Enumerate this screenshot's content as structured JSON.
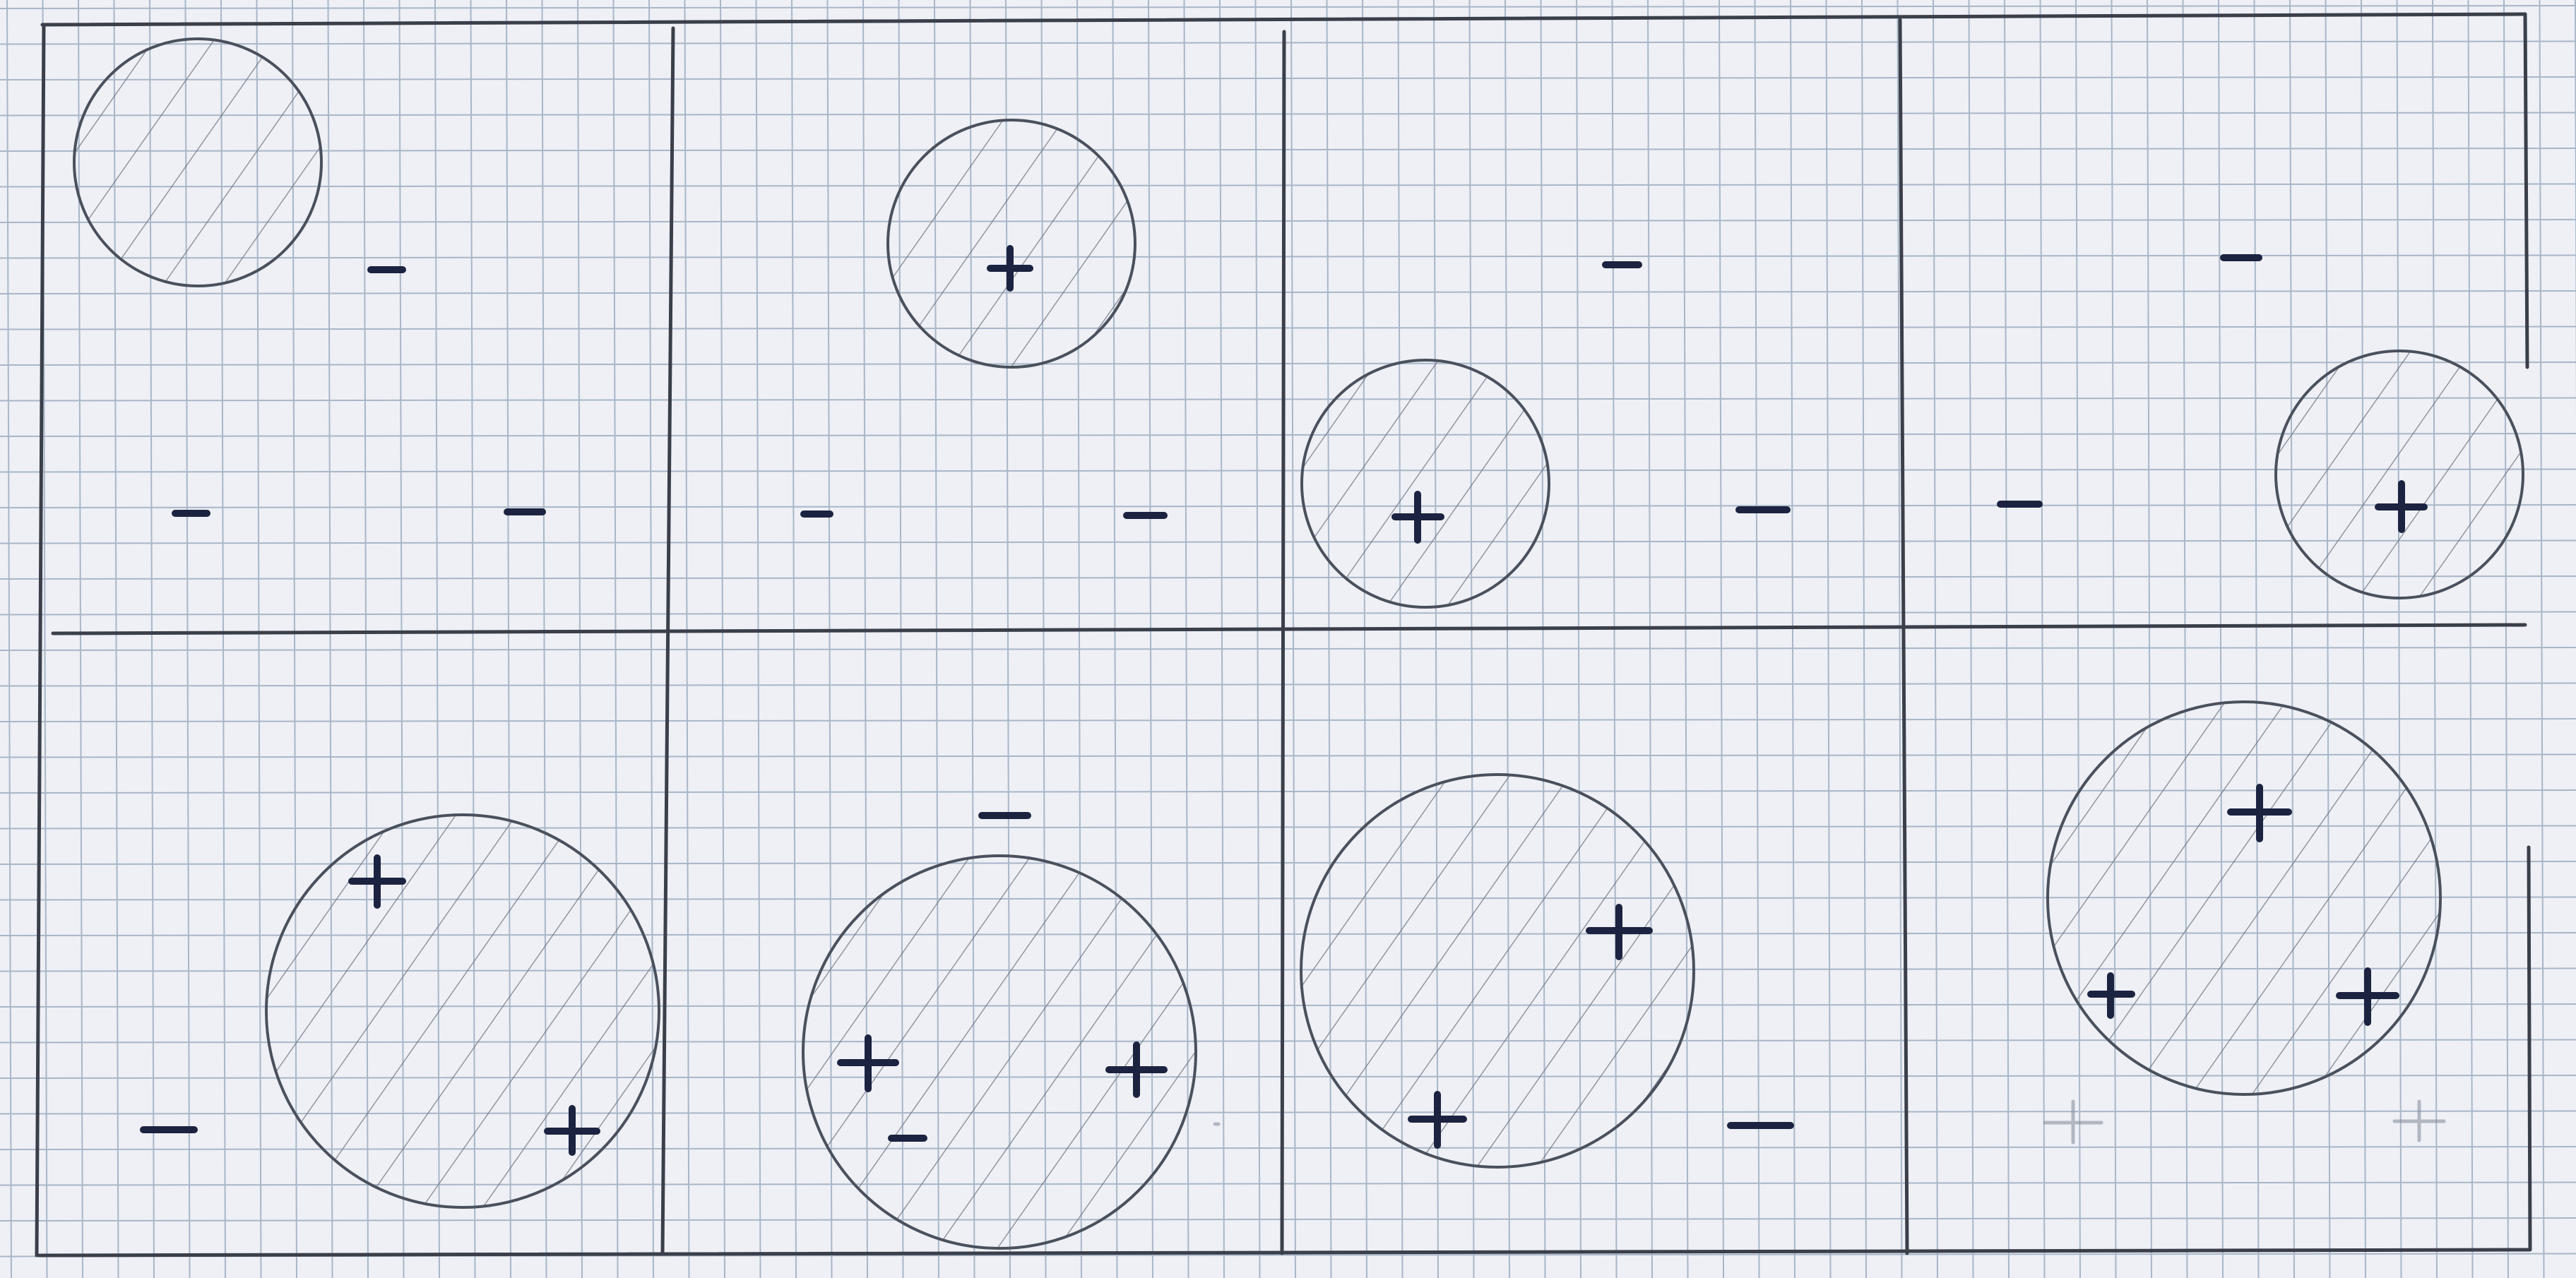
{
  "diagram": {
    "description_kind": "hand-drawn grid panels with circles containing plus and minus marks",
    "paper_color": "#eef0f5",
    "grid_color": "#a8b6c8",
    "ink_color": "#3a3f4a",
    "mark_color": "#1c2340",
    "rows": 2,
    "cols": 4,
    "panels": [
      {
        "id": "p1",
        "row": 0,
        "col": 0,
        "circles": 1,
        "plus": 0,
        "minus": 3
      },
      {
        "id": "p2",
        "row": 0,
        "col": 1,
        "circles": 1,
        "plus": 1,
        "minus": 2
      },
      {
        "id": "p3",
        "row": 0,
        "col": 2,
        "circles": 1,
        "plus": 1,
        "minus": 2
      },
      {
        "id": "p4",
        "row": 0,
        "col": 3,
        "circles": 1,
        "plus": 1,
        "minus": 2
      },
      {
        "id": "p5",
        "row": 1,
        "col": 0,
        "circles": 1,
        "plus": 2,
        "minus": 1
      },
      {
        "id": "p6",
        "row": 1,
        "col": 1,
        "circles": 1,
        "plus": 2,
        "minus": 2
      },
      {
        "id": "p7",
        "row": 1,
        "col": 2,
        "circles": 1,
        "plus": 2,
        "minus": 1
      },
      {
        "id": "p8",
        "row": 1,
        "col": 3,
        "circles": 1,
        "plus": 3,
        "minus": 0
      }
    ]
  }
}
